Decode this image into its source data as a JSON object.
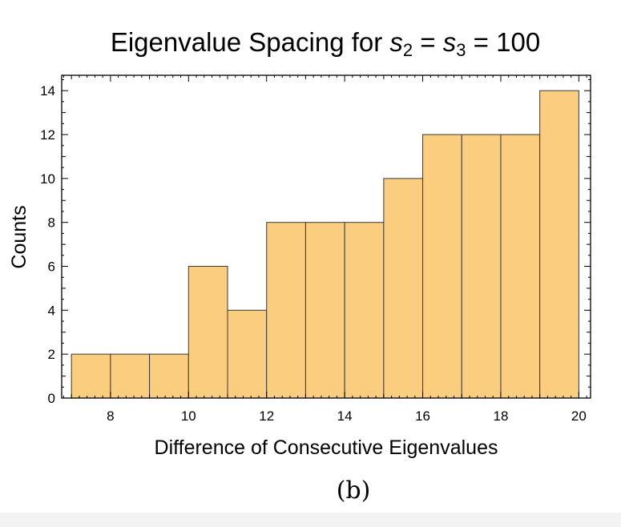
{
  "chart_data": {
    "type": "bar",
    "title": "Eigenvalue Spacing for s2 = s3 = 100",
    "title_parts": {
      "prefix": "Eigenvalue Spacing for ",
      "var1": "s",
      "sub1": "2",
      "eq1": " = ",
      "var2": "s",
      "sub2": "3",
      "eq2": " = 100"
    },
    "xlabel": "Difference of Consecutive Eigenvalues",
    "ylabel": "Counts",
    "caption": "(b)",
    "bin_edges": [
      7,
      8,
      9,
      10,
      11,
      12,
      13,
      14,
      15,
      16,
      17,
      18,
      19,
      20
    ],
    "values": [
      2,
      2,
      2,
      6,
      4,
      8,
      8,
      8,
      10,
      12,
      12,
      12,
      14
    ],
    "xlim": [
      6.75,
      20.3
    ],
    "ylim": [
      0,
      14.7
    ],
    "x_ticks": [
      8,
      10,
      12,
      14,
      16,
      18,
      20
    ],
    "y_ticks": [
      0,
      2,
      4,
      6,
      8,
      10,
      12,
      14
    ],
    "bar_color": "#fbcd7f",
    "grid": false
  }
}
